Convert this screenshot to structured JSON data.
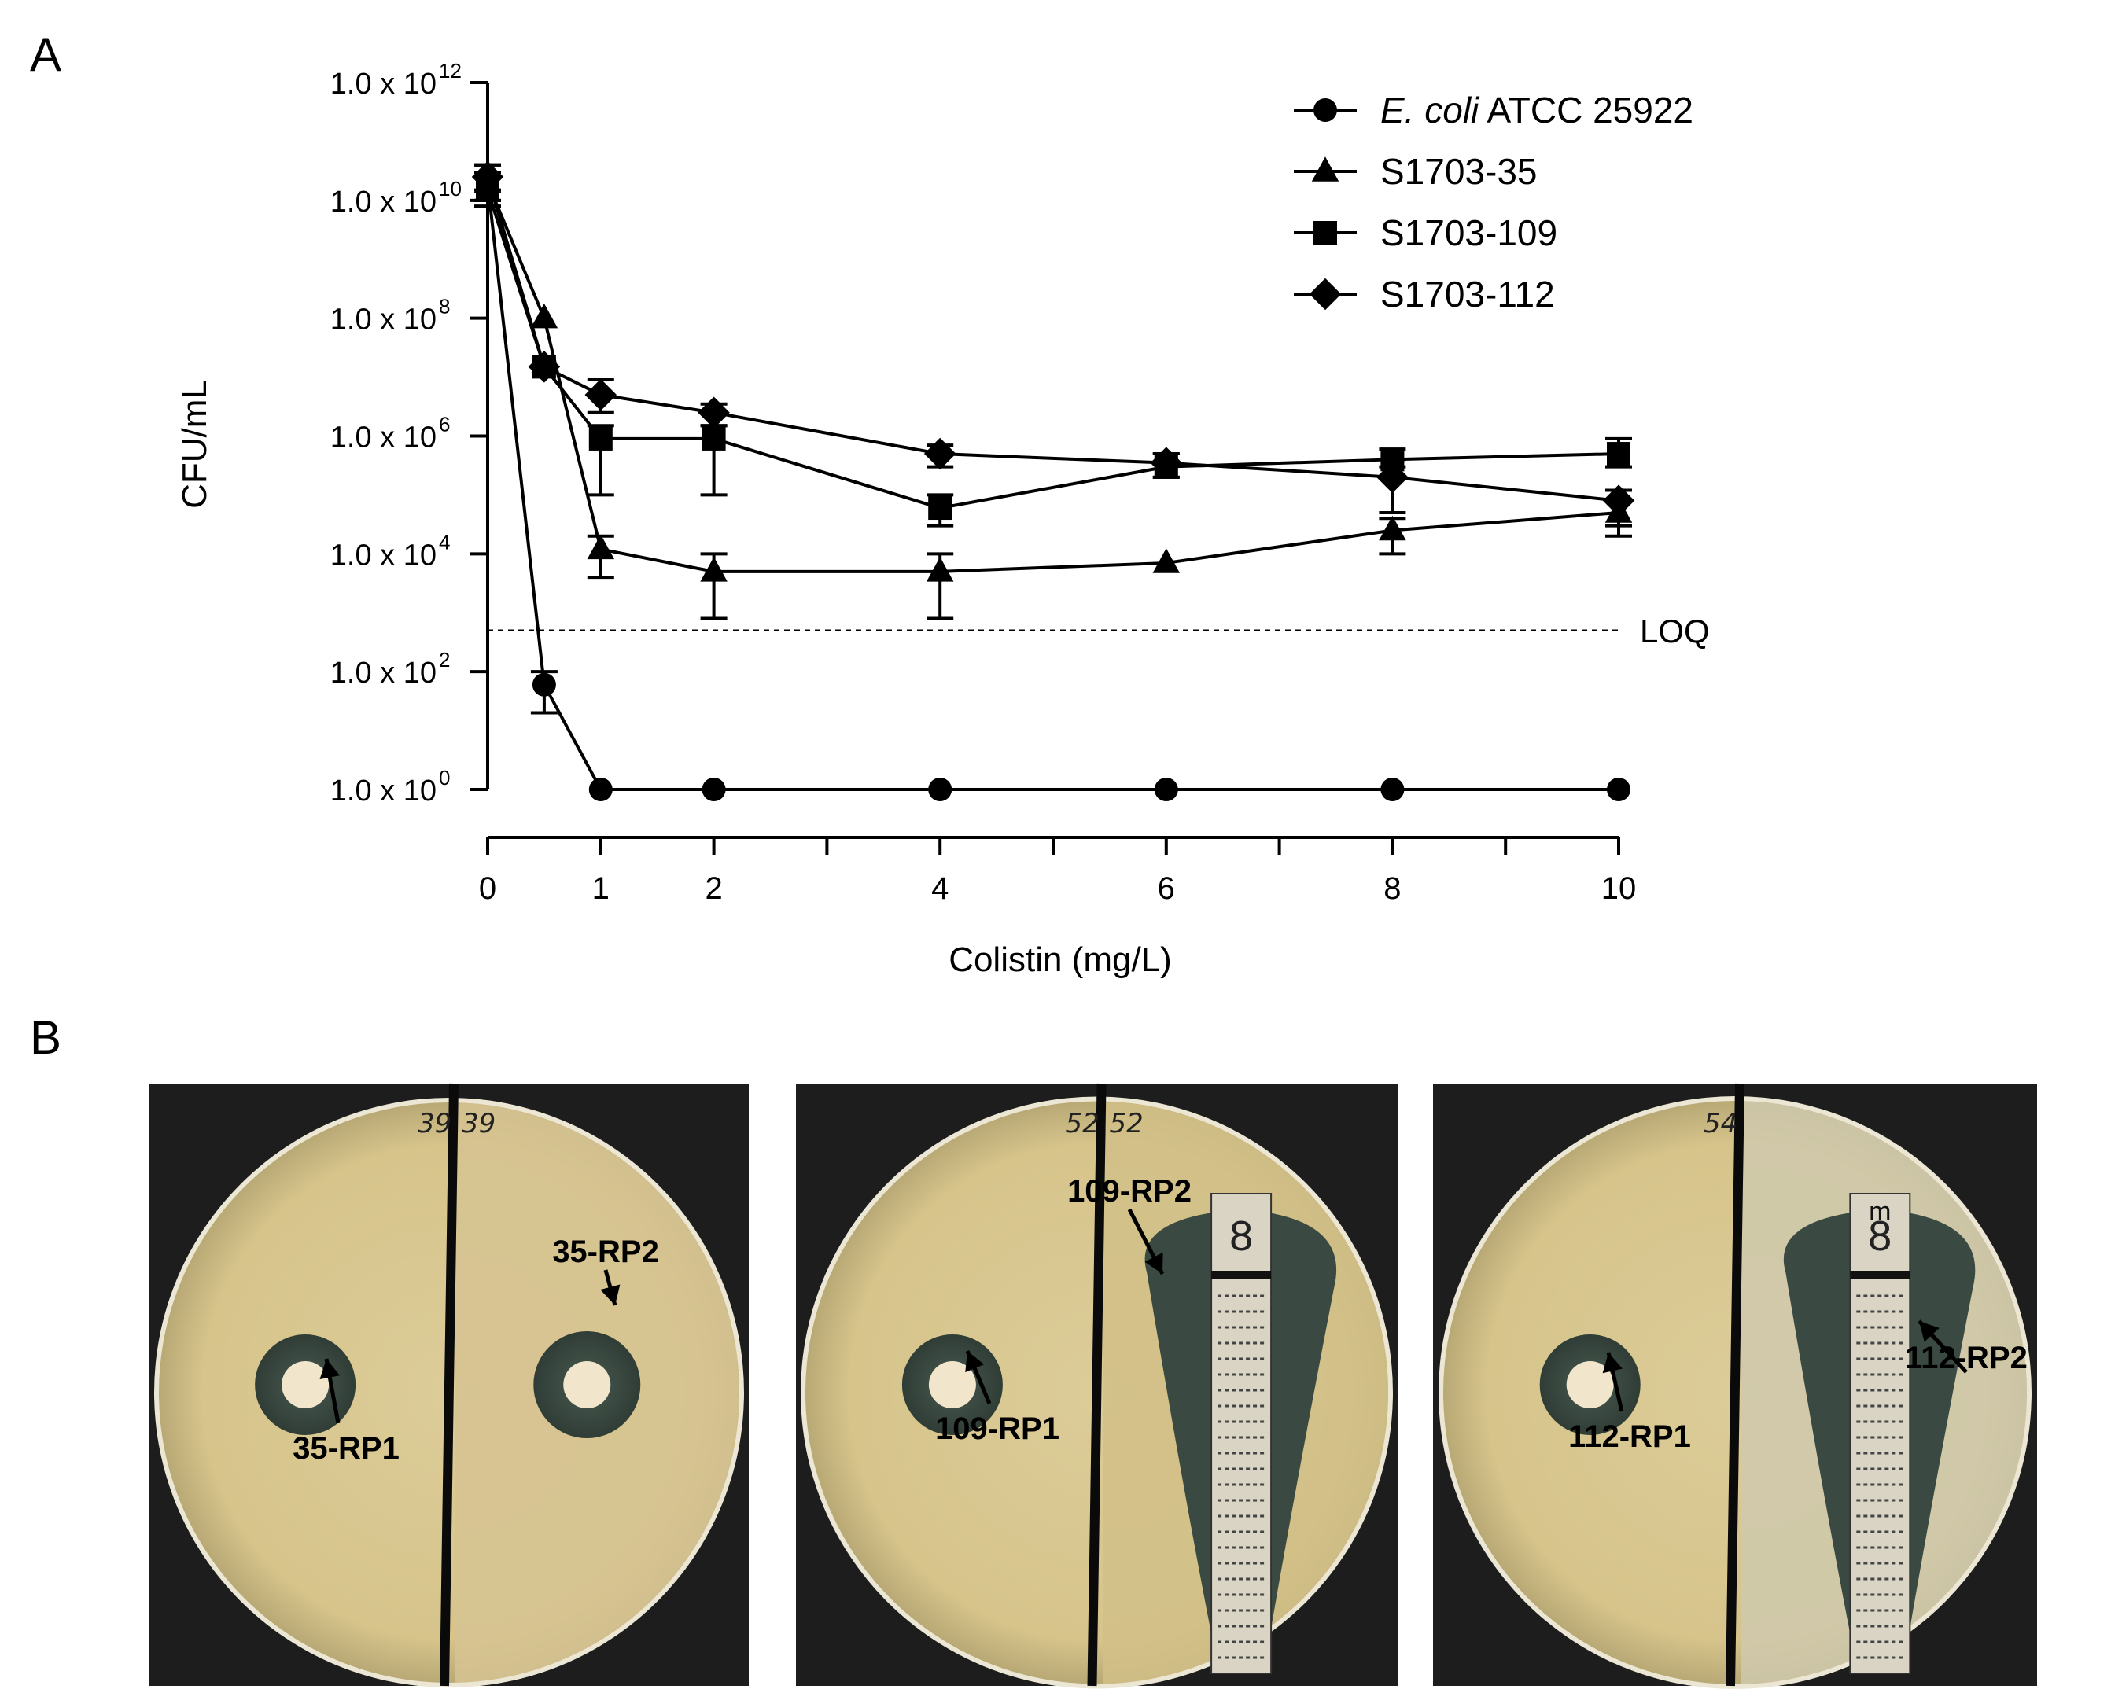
{
  "panels": {
    "a_label": "A",
    "b_label": "B"
  },
  "chart_data": {
    "type": "line",
    "xlabel": "Colistin (mg/L)",
    "ylabel": "CFU/mL",
    "xlim": [
      0,
      10
    ],
    "x_ticks_labeled": [
      0,
      1,
      2,
      4,
      6,
      8,
      10
    ],
    "x_ticks_minor": [
      3,
      5,
      7,
      9
    ],
    "y_scale": "log",
    "ylim_exponent": [
      0,
      12
    ],
    "y_ticks": [
      {
        "exp": 0,
        "mantissa": "1.0 x 10",
        "sup": "0"
      },
      {
        "exp": 2,
        "mantissa": "1.0 x 10",
        "sup": "2"
      },
      {
        "exp": 4,
        "mantissa": "1.0 x 10",
        "sup": "4"
      },
      {
        "exp": 6,
        "mantissa": "1.0 x 10",
        "sup": "6"
      },
      {
        "exp": 8,
        "mantissa": "1.0 x 10",
        "sup": "8"
      },
      {
        "exp": 10,
        "mantissa": "1.0 x 10",
        "sup": "10"
      },
      {
        "exp": 12,
        "mantissa": "1.0 x 10",
        "sup": "12"
      }
    ],
    "loq": {
      "label": "LOQ",
      "value": 500
    },
    "legend_position": "top-right",
    "series": [
      {
        "name_italic": "E. coli",
        "name_rest": " ATCC 25922",
        "marker": "circle",
        "x": [
          0,
          0.5,
          1,
          2,
          4,
          6,
          8,
          10
        ],
        "y": [
          20000000000.0,
          60,
          1,
          1,
          1,
          1,
          1,
          1
        ],
        "err_low": [
          10000000000.0,
          20,
          null,
          null,
          null,
          null,
          null,
          null
        ],
        "err_high": [
          40000000000.0,
          100,
          null,
          null,
          null,
          null,
          null,
          null
        ]
      },
      {
        "name": "S1703-35",
        "marker": "triangle",
        "x": [
          0,
          0.5,
          1,
          2,
          4,
          6,
          8,
          10
        ],
        "y": [
          20000000000.0,
          100000000.0,
          12000.0,
          5000.0,
          5000.0,
          7000.0,
          25000.0,
          50000.0
        ],
        "err_low": [
          10000000000.0,
          null,
          4000.0,
          800.0,
          800.0,
          null,
          10000.0,
          20000.0
        ],
        "err_high": [
          40000000000.0,
          null,
          20000.0,
          10000.0,
          10000.0,
          null,
          40000.0,
          80000.0
        ]
      },
      {
        "name": "S1703-109",
        "marker": "square",
        "x": [
          0,
          0.5,
          1,
          2,
          4,
          6,
          8,
          10
        ],
        "y": [
          15000000000.0,
          15000000.0,
          900000.0,
          900000.0,
          60000.0,
          300000.0,
          400000.0,
          500000.0
        ],
        "err_low": [
          8000000000.0,
          null,
          100000.0,
          100000.0,
          30000.0,
          200000.0,
          300000.0,
          300000.0
        ],
        "err_high": [
          30000000000.0,
          null,
          1500000.0,
          1500000.0,
          100000.0,
          500000.0,
          600000.0,
          900000.0
        ]
      },
      {
        "name": "S1703-112",
        "marker": "diamond",
        "x": [
          0,
          0.5,
          1,
          2,
          4,
          6,
          8,
          10
        ],
        "y": [
          25000000000.0,
          15000000.0,
          5000000.0,
          2500000.0,
          500000.0,
          350000.0,
          200000.0,
          80000.0
        ],
        "err_low": [
          15000000000.0,
          null,
          2500000.0,
          1500000.0,
          300000.0,
          200000.0,
          50000.0,
          30000.0
        ],
        "err_high": [
          40000000000.0,
          null,
          9000000.0,
          3500000.0,
          700000.0,
          500000.0,
          400000.0,
          120000.0
        ]
      }
    ]
  },
  "plates": [
    {
      "marks": [
        "39",
        "39"
      ],
      "has_strip": false,
      "right_bg": "#d6c392",
      "labels": [
        "35-RP1",
        "35-RP2"
      ]
    },
    {
      "marks": [
        "52",
        "52"
      ],
      "has_strip": true,
      "strip_mark": "",
      "right_bg": "#d1c087",
      "labels": [
        "109-RP1",
        "109-RP2"
      ]
    },
    {
      "marks": [
        "54"
      ],
      "has_strip": true,
      "strip_mark": "m",
      "right_bg": "#cfc9ad",
      "labels": [
        "112-RP1",
        "112-RP2"
      ]
    }
  ],
  "colors": {
    "agar": "#d8c68f",
    "agar_edge": "#ece7d4",
    "zone": "#3a4a42",
    "disc": "#f1e6cc",
    "ink": "#111111"
  }
}
